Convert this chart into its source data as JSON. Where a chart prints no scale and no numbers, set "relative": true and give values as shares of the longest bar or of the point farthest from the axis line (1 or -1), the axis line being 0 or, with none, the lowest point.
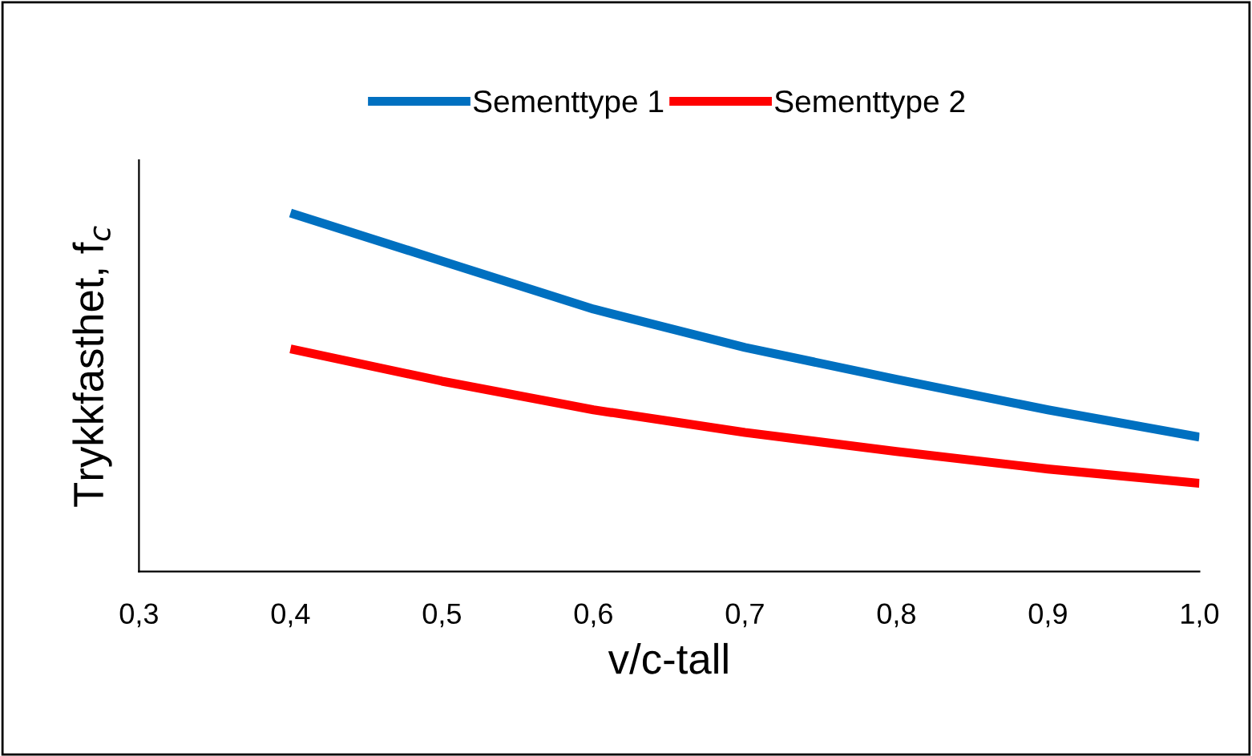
{
  "chart_data": {
    "type": "line",
    "relative": true,
    "xlabel": "v/c-tall",
    "ylabel": "Trykkfasthet, f$_{c}$",
    "xlim": [
      0.3,
      1.0
    ],
    "xticks": [
      {
        "value": 0.3,
        "label": "0,3"
      },
      {
        "value": 0.4,
        "label": "0,4"
      },
      {
        "value": 0.5,
        "label": "0,5"
      },
      {
        "value": 0.6,
        "label": "0,6"
      },
      {
        "value": 0.7,
        "label": "0,7"
      },
      {
        "value": 0.8,
        "label": "0,8"
      },
      {
        "value": 0.9,
        "label": "0,9"
      },
      {
        "value": 1.0,
        "label": "1,0"
      }
    ],
    "x": [
      0.4,
      0.5,
      0.6,
      0.7,
      0.8,
      0.9,
      1.0
    ],
    "series": [
      {
        "name": "Sementtype 1",
        "color": "#0070c0",
        "values": [
          1.0,
          0.866,
          0.732,
          0.625,
          0.536,
          0.451,
          0.375
        ]
      },
      {
        "name": "Sementtype 2",
        "color": "#ff0000",
        "values": [
          0.621,
          0.531,
          0.451,
          0.388,
          0.335,
          0.286,
          0.246
        ]
      }
    ],
    "legend": "top",
    "grid": false,
    "marker": "none",
    "line_style": "solid"
  }
}
